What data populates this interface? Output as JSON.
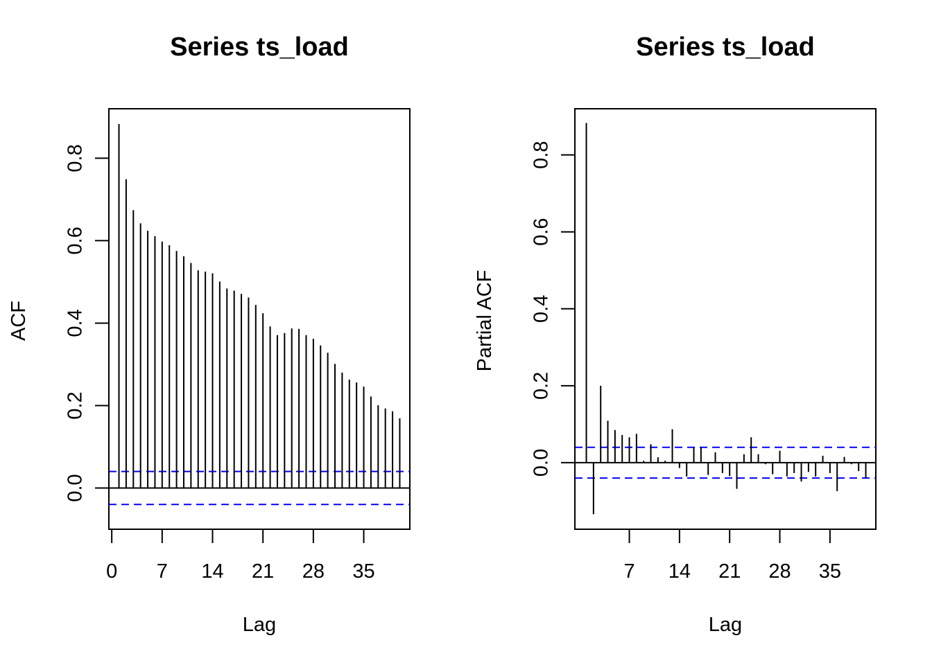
{
  "chart_data": [
    {
      "type": "bar",
      "title": "Series  ts_load",
      "xlabel": "Lag",
      "ylabel": "ACF",
      "x_ticks": [
        0,
        7,
        14,
        21,
        28,
        35
      ],
      "y_ticks": [
        0.0,
        0.2,
        0.4,
        0.6,
        0.8
      ],
      "y_tick_labels": [
        "0.0",
        "0.2",
        "0.4",
        "0.6",
        "0.8"
      ],
      "xlim": [
        -0.4,
        41.4
      ],
      "ylim": [
        -0.1,
        0.92
      ],
      "lags": [
        1,
        2,
        3,
        4,
        5,
        6,
        7,
        8,
        9,
        10,
        11,
        12,
        13,
        14,
        15,
        16,
        17,
        18,
        19,
        20,
        21,
        22,
        23,
        24,
        25,
        26,
        27,
        28,
        29,
        30,
        31,
        32,
        33,
        34,
        35,
        36,
        37,
        38,
        39,
        40
      ],
      "values": [
        0.883,
        0.749,
        0.674,
        0.642,
        0.624,
        0.611,
        0.598,
        0.589,
        0.575,
        0.562,
        0.546,
        0.528,
        0.525,
        0.521,
        0.501,
        0.484,
        0.479,
        0.471,
        0.462,
        0.444,
        0.424,
        0.392,
        0.371,
        0.376,
        0.387,
        0.386,
        0.371,
        0.362,
        0.346,
        0.328,
        0.301,
        0.28,
        0.263,
        0.256,
        0.246,
        0.222,
        0.201,
        0.193,
        0.186,
        0.169
      ],
      "confidence_bound": 0.04,
      "colors": {
        "bars": "#000000",
        "ci": "#0000ff"
      }
    },
    {
      "type": "bar",
      "title": "Series  ts_load",
      "xlabel": "Lag",
      "ylabel": "Partial ACF",
      "x_ticks": [
        7,
        14,
        21,
        28,
        35
      ],
      "y_ticks": [
        0.0,
        0.2,
        0.4,
        0.6,
        0.8
      ],
      "y_tick_labels": [
        "0.0",
        "0.2",
        "0.4",
        "0.6",
        "0.8"
      ],
      "xlim": [
        -0.6,
        41.4
      ],
      "ylim": [
        -0.173,
        0.92
      ],
      "lags": [
        1,
        2,
        3,
        4,
        5,
        6,
        7,
        8,
        9,
        10,
        11,
        12,
        13,
        14,
        15,
        16,
        17,
        18,
        19,
        20,
        21,
        22,
        23,
        24,
        25,
        26,
        27,
        28,
        29,
        30,
        31,
        32,
        33,
        34,
        35,
        36,
        37,
        38,
        39,
        40
      ],
      "values": [
        0.883,
        -0.134,
        0.2,
        0.109,
        0.085,
        0.072,
        0.066,
        0.075,
        0.005,
        0.048,
        0.014,
        0.005,
        0.087,
        -0.014,
        -0.036,
        0.039,
        0.04,
        -0.032,
        0.027,
        -0.027,
        -0.035,
        -0.068,
        0.022,
        0.066,
        0.022,
        -0.004,
        -0.03,
        0.031,
        -0.036,
        -0.027,
        -0.049,
        -0.024,
        -0.036,
        0.018,
        -0.027,
        -0.074,
        0.015,
        -0.004,
        -0.022,
        -0.04
      ],
      "confidence_bound": 0.04,
      "colors": {
        "bars": "#000000",
        "ci": "#0000ff"
      }
    }
  ]
}
